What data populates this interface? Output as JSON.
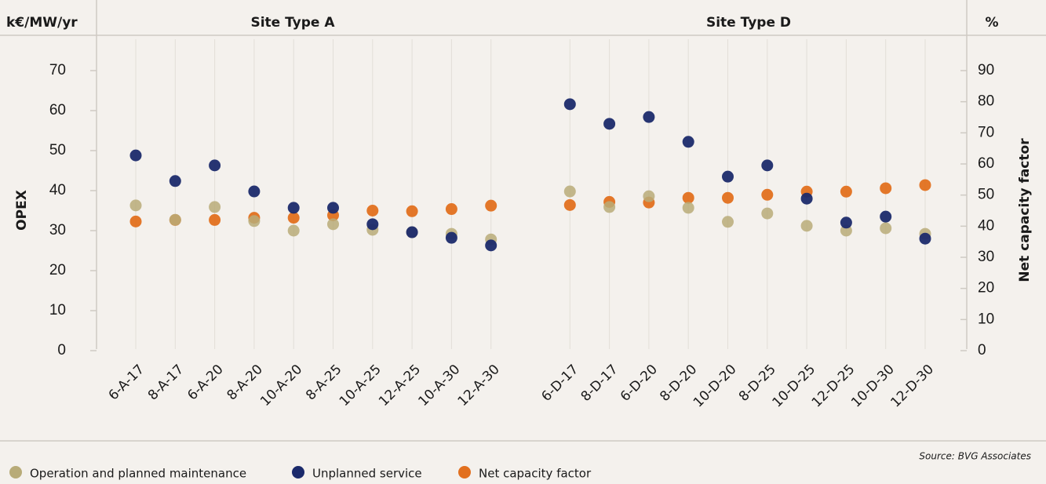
{
  "chart_data": {
    "type": "dot",
    "y_unit": "k€/MW/yr",
    "y2_unit": "%",
    "group_labels": [
      "Site Type A",
      "Site Type D"
    ],
    "ylabel": "OPEX",
    "y2label": "Net capacity factor",
    "source": "Source: BVG Associates",
    "categories": [
      "6-A-17",
      "8-A-17",
      "6-A-20",
      "8-A-20",
      "10-A-20",
      "8-A-25",
      "10-A-25",
      "12-A-25",
      "10-A-30",
      "12-A-30",
      null,
      "6-D-17",
      "8-D-17",
      "6-D-20",
      "8-D-20",
      "10-D-20",
      "8-D-25",
      "10-D-25",
      "12-D-25",
      "10-D-30",
      "12-D-30"
    ],
    "series": [
      {
        "name": "Operation and planned maintenance",
        "color": "#b8ab78",
        "values": [
          36.3,
          32.7,
          35.9,
          32.4,
          30,
          31.6,
          30.2,
          29.6,
          29.2,
          27.8,
          null,
          39.8,
          35.9,
          38.6,
          35.7,
          32.2,
          34.3,
          31.2,
          30,
          30.6,
          29.2
        ]
      },
      {
        "name": "Unplanned service",
        "color": "#1b2a6b",
        "values": [
          48.8,
          42.4,
          46.3,
          39.8,
          35.7,
          35.7,
          31.6,
          29.6,
          28.2,
          26.3,
          null,
          61.6,
          56.7,
          58.4,
          52.2,
          43.5,
          46.3,
          38,
          32,
          33.5,
          28
        ]
      },
      {
        "name": "Net capacity factor",
        "color": "#e2701f",
        "axis": "y2",
        "values": [
          41.5,
          42,
          42,
          42.7,
          42.7,
          43.5,
          45,
          44.8,
          45.5,
          46.6,
          null,
          46.8,
          47.8,
          47.6,
          49.1,
          49.1,
          50.1,
          51.1,
          51.1,
          52.2,
          53.2
        ]
      }
    ],
    "ylim": [
      0,
      70
    ],
    "yticks": [
      0,
      10,
      20,
      30,
      40,
      50,
      60,
      70
    ],
    "y2lim": [
      0,
      90
    ],
    "y2ticks": [
      0,
      10,
      20,
      30,
      40,
      50,
      60,
      70,
      80,
      90
    ],
    "grid": true
  }
}
